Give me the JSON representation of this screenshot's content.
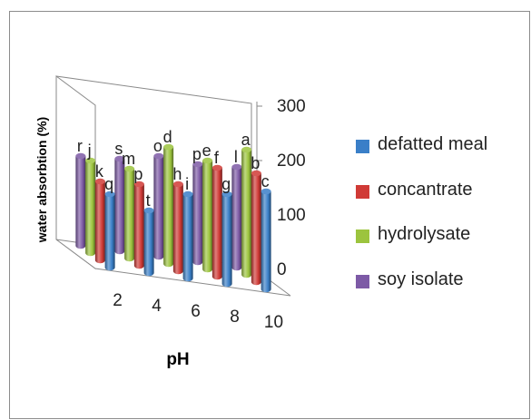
{
  "chart_data": {
    "type": "bar",
    "style": "3d-clustered-column",
    "xlabel": "pH",
    "ylabel": "water absorbtion (%)",
    "categories": [
      "2",
      "4",
      "6",
      "8",
      "10"
    ],
    "ylim": [
      0,
      300
    ],
    "yticks": [
      "0",
      "100",
      "200",
      "300"
    ],
    "grid": false,
    "legend_position": "right",
    "series": [
      {
        "name": "defatted meal",
        "color": "#3a7fc8",
        "values": [
          135,
          115,
          155,
          165,
          180
        ],
        "labels": [
          "q",
          "t",
          "i",
          "g",
          "c"
        ]
      },
      {
        "name": "concantrate",
        "color": "#d03a36",
        "values": [
          145,
          150,
          160,
          200,
          200
        ],
        "labels": [
          "k",
          "p",
          "h",
          "f",
          "b"
        ]
      },
      {
        "name": "hydrolysate",
        "color": "#9cc43e",
        "values": [
          170,
          165,
          215,
          200,
          230
        ],
        "labels": [
          "j",
          "m",
          "d",
          "e",
          "a"
        ]
      },
      {
        "name": "soy isolate",
        "color": "#7d5aa6",
        "values": [
          165,
          170,
          185,
          180,
          185
        ],
        "labels": [
          "r",
          "s",
          "o",
          "p",
          "l"
        ]
      }
    ]
  }
}
